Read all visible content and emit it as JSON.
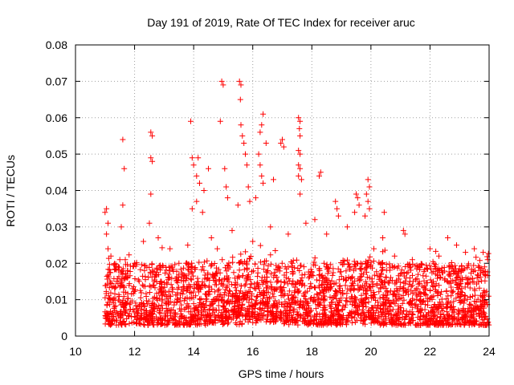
{
  "chart_data": {
    "type": "scatter",
    "title": "Day 191 of 2019, Rate Of TEC Index for receiver aruc",
    "xlabel": "GPS time / hours",
    "ylabel": "ROTI / TECUs",
    "xlim": [
      10,
      24
    ],
    "ylim": [
      0,
      0.08
    ],
    "x_ticks": [
      "10",
      "12",
      "14",
      "16",
      "18",
      "20",
      "22",
      "24"
    ],
    "y_ticks": [
      "0",
      "0.01",
      "0.02",
      "0.03",
      "0.04",
      "0.05",
      "0.06",
      "0.07",
      "0.08"
    ],
    "grid": true,
    "marker": "+",
    "series": [
      {
        "name": "ROTI",
        "color": "#ff0000",
        "points": [
          [
            11.0,
            0.034
          ],
          [
            11.05,
            0.035
          ],
          [
            11.1,
            0.031
          ],
          [
            11.05,
            0.028
          ],
          [
            11.1,
            0.024
          ],
          [
            11.6,
            0.054
          ],
          [
            11.65,
            0.046
          ],
          [
            11.6,
            0.036
          ],
          [
            11.55,
            0.03
          ],
          [
            12.55,
            0.056
          ],
          [
            12.6,
            0.055
          ],
          [
            12.55,
            0.049
          ],
          [
            12.6,
            0.048
          ],
          [
            12.55,
            0.039
          ],
          [
            12.5,
            0.031
          ],
          [
            13.9,
            0.059
          ],
          [
            13.95,
            0.049
          ],
          [
            14.0,
            0.047
          ],
          [
            14.1,
            0.044
          ],
          [
            14.15,
            0.049
          ],
          [
            14.2,
            0.042
          ],
          [
            14.1,
            0.037
          ],
          [
            14.35,
            0.04
          ],
          [
            14.3,
            0.034
          ],
          [
            14.5,
            0.046
          ],
          [
            13.95,
            0.035
          ],
          [
            14.95,
            0.07
          ],
          [
            15.0,
            0.069
          ],
          [
            14.9,
            0.059
          ],
          [
            15.05,
            0.046
          ],
          [
            15.1,
            0.041
          ],
          [
            15.15,
            0.038
          ],
          [
            15.55,
            0.07
          ],
          [
            15.6,
            0.069
          ],
          [
            15.58,
            0.065
          ],
          [
            15.6,
            0.058
          ],
          [
            15.65,
            0.055
          ],
          [
            15.7,
            0.053
          ],
          [
            15.75,
            0.05
          ],
          [
            15.8,
            0.047
          ],
          [
            15.85,
            0.041
          ],
          [
            15.9,
            0.037
          ],
          [
            15.5,
            0.036
          ],
          [
            16.35,
            0.061
          ],
          [
            16.3,
            0.058
          ],
          [
            16.25,
            0.056
          ],
          [
            16.45,
            0.053
          ],
          [
            16.2,
            0.05
          ],
          [
            16.25,
            0.047
          ],
          [
            16.3,
            0.044
          ],
          [
            16.35,
            0.042
          ],
          [
            16.1,
            0.038
          ],
          [
            16.95,
            0.053
          ],
          [
            17.0,
            0.054
          ],
          [
            17.05,
            0.052
          ],
          [
            16.7,
            0.043
          ],
          [
            17.55,
            0.06
          ],
          [
            17.6,
            0.059
          ],
          [
            17.58,
            0.057
          ],
          [
            17.6,
            0.055
          ],
          [
            17.55,
            0.051
          ],
          [
            17.6,
            0.05
          ],
          [
            17.55,
            0.047
          ],
          [
            17.6,
            0.046
          ],
          [
            17.55,
            0.044
          ],
          [
            17.65,
            0.043
          ],
          [
            17.6,
            0.039
          ],
          [
            18.3,
            0.045
          ],
          [
            18.25,
            0.044
          ],
          [
            18.8,
            0.037
          ],
          [
            18.85,
            0.035
          ],
          [
            18.9,
            0.033
          ],
          [
            19.5,
            0.039
          ],
          [
            19.55,
            0.038
          ],
          [
            19.6,
            0.036
          ],
          [
            19.45,
            0.034
          ],
          [
            19.9,
            0.043
          ],
          [
            19.95,
            0.041
          ],
          [
            19.85,
            0.039
          ],
          [
            19.9,
            0.037
          ],
          [
            19.95,
            0.035
          ],
          [
            19.8,
            0.033
          ],
          [
            20.45,
            0.034
          ],
          [
            21.1,
            0.029
          ],
          [
            21.15,
            0.028
          ],
          [
            20.4,
            0.027
          ],
          [
            22.6,
            0.027
          ],
          [
            23.5,
            0.024
          ],
          [
            11.2,
            0.022
          ],
          [
            11.5,
            0.021
          ],
          [
            12.0,
            0.02
          ],
          [
            12.3,
            0.026
          ],
          [
            12.8,
            0.027
          ],
          [
            13.2,
            0.024
          ],
          [
            13.5,
            0.02
          ],
          [
            13.8,
            0.025
          ],
          [
            14.6,
            0.027
          ],
          [
            14.8,
            0.024
          ],
          [
            15.3,
            0.029
          ],
          [
            16.0,
            0.026
          ],
          [
            16.6,
            0.03
          ],
          [
            17.2,
            0.028
          ],
          [
            17.8,
            0.031
          ],
          [
            18.1,
            0.032
          ],
          [
            18.5,
            0.028
          ],
          [
            19.2,
            0.03
          ],
          [
            20.1,
            0.024
          ],
          [
            20.8,
            0.022
          ],
          [
            21.4,
            0.021
          ],
          [
            22.0,
            0.024
          ],
          [
            22.3,
            0.022
          ],
          [
            22.9,
            0.025
          ],
          [
            23.2,
            0.023
          ],
          [
            23.8,
            0.023
          ],
          [
            23.95,
            0.021
          ]
        ]
      }
    ],
    "dense_band": {
      "description": "dense cloud of ROTI samples from 11 to 24 h",
      "x_range": [
        11.0,
        24.0
      ],
      "typical_range": [
        0.003,
        0.02
      ],
      "median": 0.009,
      "count": 2800
    }
  }
}
